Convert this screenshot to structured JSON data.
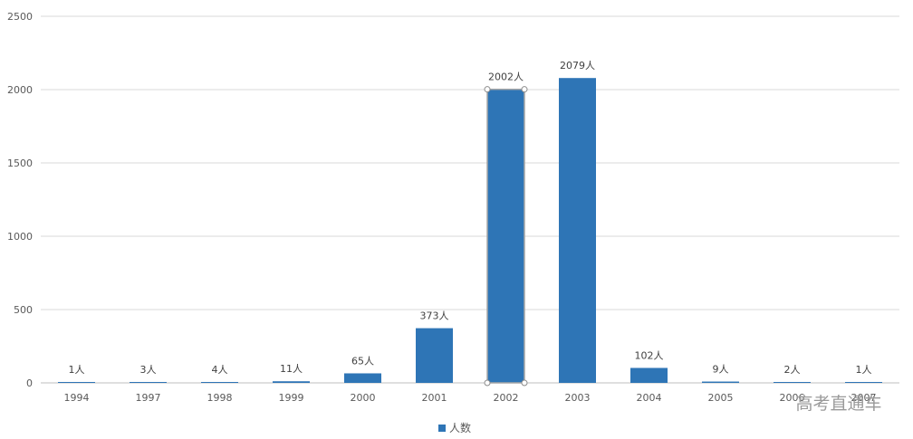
{
  "chart_data": {
    "type": "bar",
    "categories": [
      "1994",
      "1997",
      "1998",
      "1999",
      "2000",
      "2001",
      "2002",
      "2003",
      "2004",
      "2005",
      "2006",
      "2007"
    ],
    "series": [
      {
        "name": "人数",
        "values": [
          1,
          3,
          4,
          11,
          65,
          373,
          2002,
          2079,
          102,
          9,
          2,
          1
        ],
        "color": "#2e75b6"
      }
    ],
    "data_labels": [
      "1人",
      "3人",
      "4人",
      "11人",
      "65人",
      "373人",
      "2002人",
      "2079人",
      "102人",
      "9人",
      "2人",
      "1人"
    ],
    "title": "",
    "xlabel": "",
    "ylabel": "",
    "ylim": [
      0,
      2500
    ],
    "yticks": [
      0,
      500,
      1000,
      1500,
      2000,
      2500
    ],
    "grid": true,
    "legend": "bottom",
    "selected_category": "2002"
  },
  "watermark": "高考直通车"
}
